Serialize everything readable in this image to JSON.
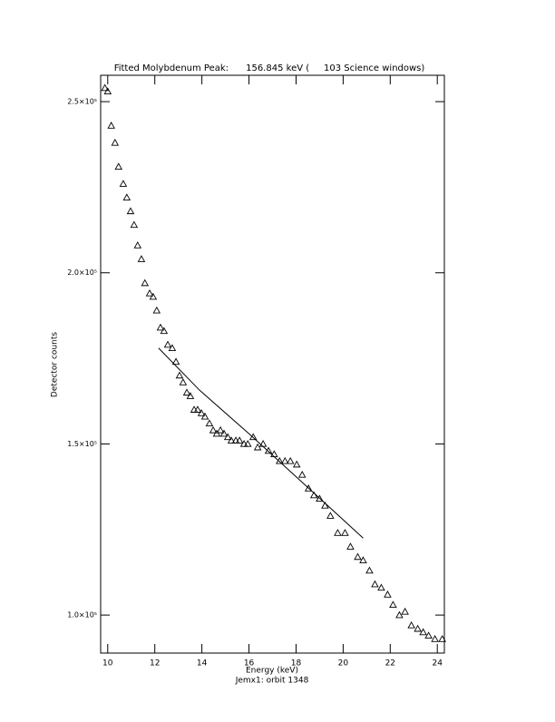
{
  "chart_data": {
    "type": "scatter",
    "title": "Fitted Molybdenum Peak:      156.845 keV (     103 Science windows)",
    "x_label": "Energy (keV)",
    "subtitle": "Jemx1: orbit 1348",
    "y_label": "Detector counts",
    "xlim": [
      9.7,
      24.3
    ],
    "ylim": [
      88900,
      257700
    ],
    "xticks": [
      10,
      12,
      14,
      16,
      18,
      20,
      22,
      24
    ],
    "yticks": [
      {
        "value": 100000,
        "label": "1.0×10⁵"
      },
      {
        "value": 150000,
        "label": "1.5×10⁵"
      },
      {
        "value": 200000,
        "label": "2.0×10⁵"
      },
      {
        "value": 250000,
        "label": "2.5×10⁵"
      }
    ],
    "grid": false,
    "series": [
      {
        "style": "triangle",
        "color": "#000000",
        "x": [
          9.88,
          10.0,
          10.15,
          10.31,
          10.46,
          10.66,
          10.81,
          10.97,
          11.12,
          11.27,
          11.43,
          11.58,
          11.78,
          11.93,
          12.08,
          12.24,
          12.39,
          12.55,
          12.74,
          12.9,
          13.05,
          13.2,
          13.36,
          13.51,
          13.67,
          13.82,
          13.98,
          14.13,
          14.32,
          14.48,
          14.63,
          14.79,
          14.94,
          15.1,
          15.25,
          15.44,
          15.6,
          15.79,
          15.95,
          16.18,
          16.37,
          16.6,
          16.83,
          17.07,
          17.3,
          17.53,
          17.76,
          18.03,
          18.26,
          18.53,
          18.76,
          19.0,
          19.23,
          19.46,
          19.77,
          20.08,
          20.31,
          20.62,
          20.85,
          21.12,
          21.35,
          21.62,
          21.89,
          22.12,
          22.39,
          22.63,
          22.9,
          23.17,
          23.4,
          23.63,
          23.9,
          24.21
        ],
        "values": [
          254000,
          253000,
          243000,
          238000,
          231000,
          226000,
          222000,
          218000,
          214000,
          208000,
          204000,
          197000,
          194000,
          193000,
          189000,
          184000,
          183000,
          179000,
          178000,
          174000,
          170000,
          168000,
          165000,
          164000,
          160000,
          160000,
          159000,
          158000,
          156000,
          154000,
          153000,
          154000,
          153000,
          152000,
          151000,
          151000,
          151000,
          150000,
          150000,
          152000,
          149000,
          150000,
          148000,
          147000,
          145000,
          145000,
          145000,
          144000,
          141000,
          137000,
          135000,
          134000,
          132000,
          129000,
          124000,
          124000,
          120000,
          117000,
          116000,
          113000,
          109000,
          108000,
          106000,
          103000,
          100000,
          101000,
          97000,
          96000,
          95000,
          94000,
          93000,
          93000
        ]
      },
      {
        "style": "line",
        "color": "#000000",
        "x": [
          12.16,
          13.9,
          16.0,
          20.85
        ],
        "values": [
          178000,
          165700,
          153000,
          122500
        ]
      }
    ]
  }
}
